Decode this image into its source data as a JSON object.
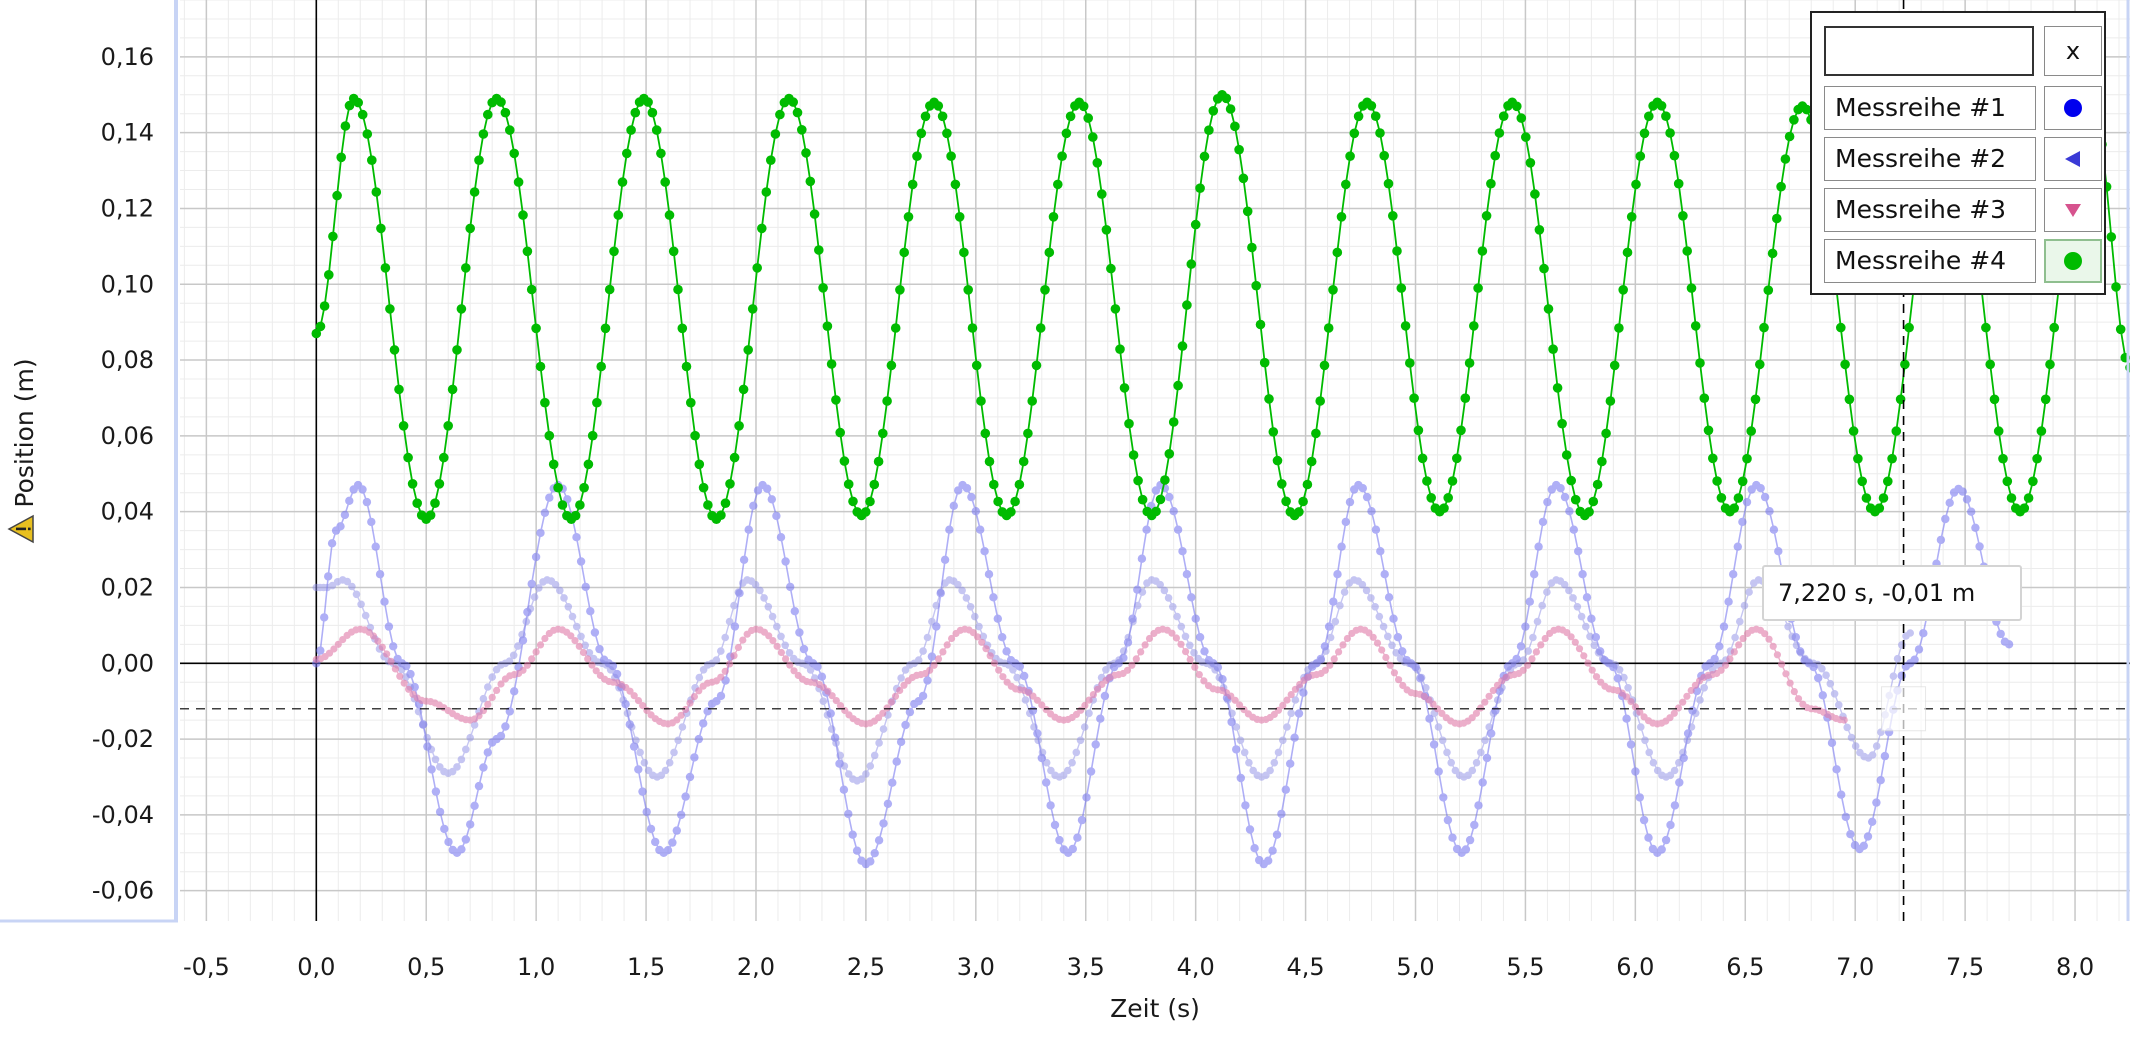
{
  "chart_data": {
    "type": "line",
    "title": "",
    "xlabel": "Zeit (s)",
    "ylabel": "Position (m)",
    "ylabel_icon": "warning-icon",
    "xlim": [
      -0.62,
      8.25
    ],
    "ylim": [
      -0.068,
      0.175
    ],
    "x_ticks": [
      "-0,5",
      "0,0",
      "0,5",
      "1,0",
      "1,5",
      "2,0",
      "2,5",
      "3,0",
      "3,5",
      "4,0",
      "4,5",
      "5,0",
      "5,5",
      "6,0",
      "6,5",
      "7,0",
      "7,5",
      "8,0"
    ],
    "y_ticks": [
      "0,16",
      "0,14",
      "0,12",
      "0,10",
      "0,08",
      "0,06",
      "0,04",
      "0,02",
      "0,00",
      "-0,02",
      "-0,04",
      "-0,06"
    ],
    "grid": true,
    "legend_position": "top-right",
    "series": [
      {
        "name": "Messreihe #1",
        "color": "#6e6ef0",
        "marker": "circle",
        "x": [
          0.0,
          0.09,
          0.19,
          0.39,
          0.64,
          0.82,
          1.1,
          1.33,
          1.58,
          1.82,
          2.03,
          2.26,
          2.5,
          2.74,
          2.94,
          3.18,
          3.42,
          3.65,
          3.84,
          4.08,
          4.31,
          4.55,
          4.74,
          4.98,
          5.21,
          5.44,
          5.64,
          5.88,
          6.1,
          6.34,
          6.55,
          6.79,
          7.02,
          7.25,
          7.47,
          7.7
        ],
        "y": [
          0.0,
          0.035,
          0.047,
          0.0,
          -0.05,
          -0.02,
          0.047,
          0.0,
          -0.05,
          -0.01,
          0.047,
          0.0,
          -0.053,
          -0.01,
          0.047,
          0.0,
          -0.05,
          0.0,
          0.047,
          0.0,
          -0.053,
          0.0,
          0.047,
          0.0,
          -0.05,
          0.0,
          0.047,
          0.0,
          -0.05,
          0.0,
          0.047,
          0.0,
          -0.049,
          0.0,
          0.046,
          0.005
        ]
      },
      {
        "name": "Messreihe #2",
        "color": "#8c8ce6",
        "marker": "triangle-left",
        "x": [
          0.0,
          0.05,
          0.12,
          0.35,
          0.6,
          0.86,
          1.05,
          1.3,
          1.55,
          1.8,
          1.96,
          2.21,
          2.46,
          2.72,
          2.88,
          3.13,
          3.38,
          3.63,
          3.8,
          4.05,
          4.3,
          4.55,
          4.72,
          4.97,
          5.22,
          5.47,
          5.64,
          5.89,
          6.14,
          6.39,
          6.56,
          6.81,
          7.06,
          7.25
        ],
        "y": [
          0.02,
          0.02,
          0.022,
          0.0,
          -0.029,
          0.0,
          0.022,
          0.0,
          -0.03,
          0.0,
          0.022,
          0.0,
          -0.031,
          0.0,
          0.022,
          0.0,
          -0.03,
          0.0,
          0.022,
          0.0,
          -0.03,
          0.0,
          0.022,
          0.0,
          -0.03,
          0.0,
          0.022,
          0.0,
          -0.03,
          0.0,
          0.022,
          0.0,
          -0.025,
          0.008
        ]
      },
      {
        "name": "Messreihe #3",
        "color": "#e07aa8",
        "marker": "triangle-down",
        "x": [
          0.0,
          0.2,
          0.5,
          0.7,
          0.9,
          1.1,
          1.35,
          1.6,
          1.8,
          2.0,
          2.25,
          2.5,
          2.75,
          2.95,
          3.2,
          3.4,
          3.65,
          3.85,
          4.1,
          4.3,
          4.55,
          4.75,
          5.0,
          5.2,
          5.45,
          5.65,
          5.9,
          6.1,
          6.35,
          6.55,
          6.8,
          6.95
        ],
        "y": [
          0.001,
          0.009,
          -0.01,
          -0.015,
          -0.003,
          0.009,
          -0.005,
          -0.016,
          -0.005,
          0.009,
          -0.005,
          -0.016,
          -0.003,
          0.009,
          -0.007,
          -0.015,
          -0.003,
          0.009,
          -0.007,
          -0.015,
          -0.003,
          0.009,
          -0.008,
          -0.016,
          -0.003,
          0.009,
          -0.007,
          -0.016,
          -0.003,
          0.009,
          -0.012,
          -0.015
        ]
      },
      {
        "name": "Messreihe #4",
        "color": "#00bb00",
        "marker": "circle",
        "x": [
          0.0,
          0.17,
          0.5,
          0.82,
          1.16,
          1.49,
          1.82,
          2.15,
          2.48,
          2.81,
          3.14,
          3.47,
          3.8,
          4.12,
          4.45,
          4.78,
          5.11,
          5.44,
          5.77,
          6.1,
          6.43,
          6.76,
          7.09,
          7.42,
          7.75,
          8.08,
          8.25
        ],
        "y": [
          0.087,
          0.149,
          0.038,
          0.149,
          0.038,
          0.149,
          0.038,
          0.149,
          0.039,
          0.148,
          0.039,
          0.148,
          0.039,
          0.15,
          0.039,
          0.148,
          0.04,
          0.148,
          0.039,
          0.148,
          0.04,
          0.147,
          0.04,
          0.147,
          0.04,
          0.147,
          0.078
        ]
      }
    ],
    "crosshair": {
      "x": 7.22,
      "y": -0.012
    },
    "tooltip": "7,220 s, -0,01 m"
  },
  "legend": {
    "close_label": "x",
    "filter_value": "",
    "items": [
      {
        "label": "Messreihe #1",
        "icon": "blue-circle-marker-icon"
      },
      {
        "label": "Messreihe #2",
        "icon": "blue-triangle-left-marker-icon"
      },
      {
        "label": "Messreihe #3",
        "icon": "pink-triangle-down-marker-icon"
      },
      {
        "label": "Messreihe #4",
        "icon": "green-circle-marker-icon"
      }
    ]
  }
}
